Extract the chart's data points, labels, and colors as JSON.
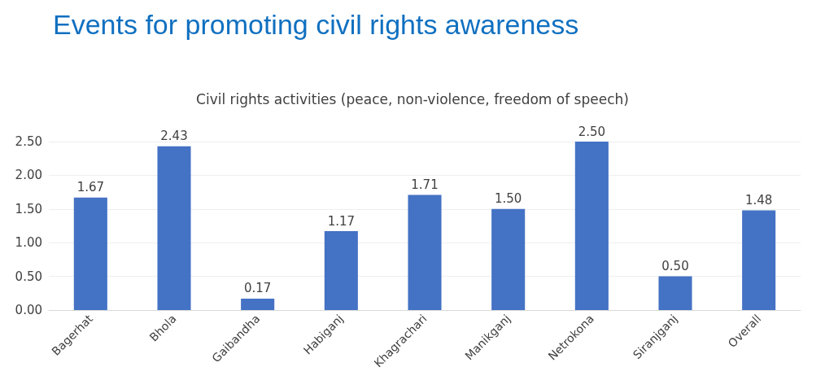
{
  "chart_data": {
    "type": "bar",
    "title": "Events for promoting civil rights awareness",
    "subtitle": "Civil rights activities (peace, non-violence, freedom of speech)",
    "categories": [
      "Bagerhat",
      "Bhola",
      "Gaibandha",
      "Habiganj",
      "Khagrachari",
      "Manikganj",
      "Netrokona",
      "Siranjganj",
      "Overall"
    ],
    "values": [
      1.67,
      2.43,
      0.17,
      1.17,
      1.71,
      1.5,
      2.5,
      0.5,
      1.48
    ],
    "value_labels": [
      "1.67",
      "2.43",
      "0.17",
      "1.17",
      "1.71",
      "1.50",
      "2.50",
      "0.50",
      "1.48"
    ],
    "color": "#4472c4",
    "ylim": [
      0,
      2.5
    ],
    "yticks": [
      {
        "value": 0,
        "label": "0.00"
      },
      {
        "value": 0.5,
        "label": "0.50"
      },
      {
        "value": 1,
        "label": "1.00"
      },
      {
        "value": 1.5,
        "label": "1.50"
      },
      {
        "value": 2,
        "label": "2.00"
      },
      {
        "value": 2.5,
        "label": "2.50"
      }
    ],
    "grid": "y"
  }
}
